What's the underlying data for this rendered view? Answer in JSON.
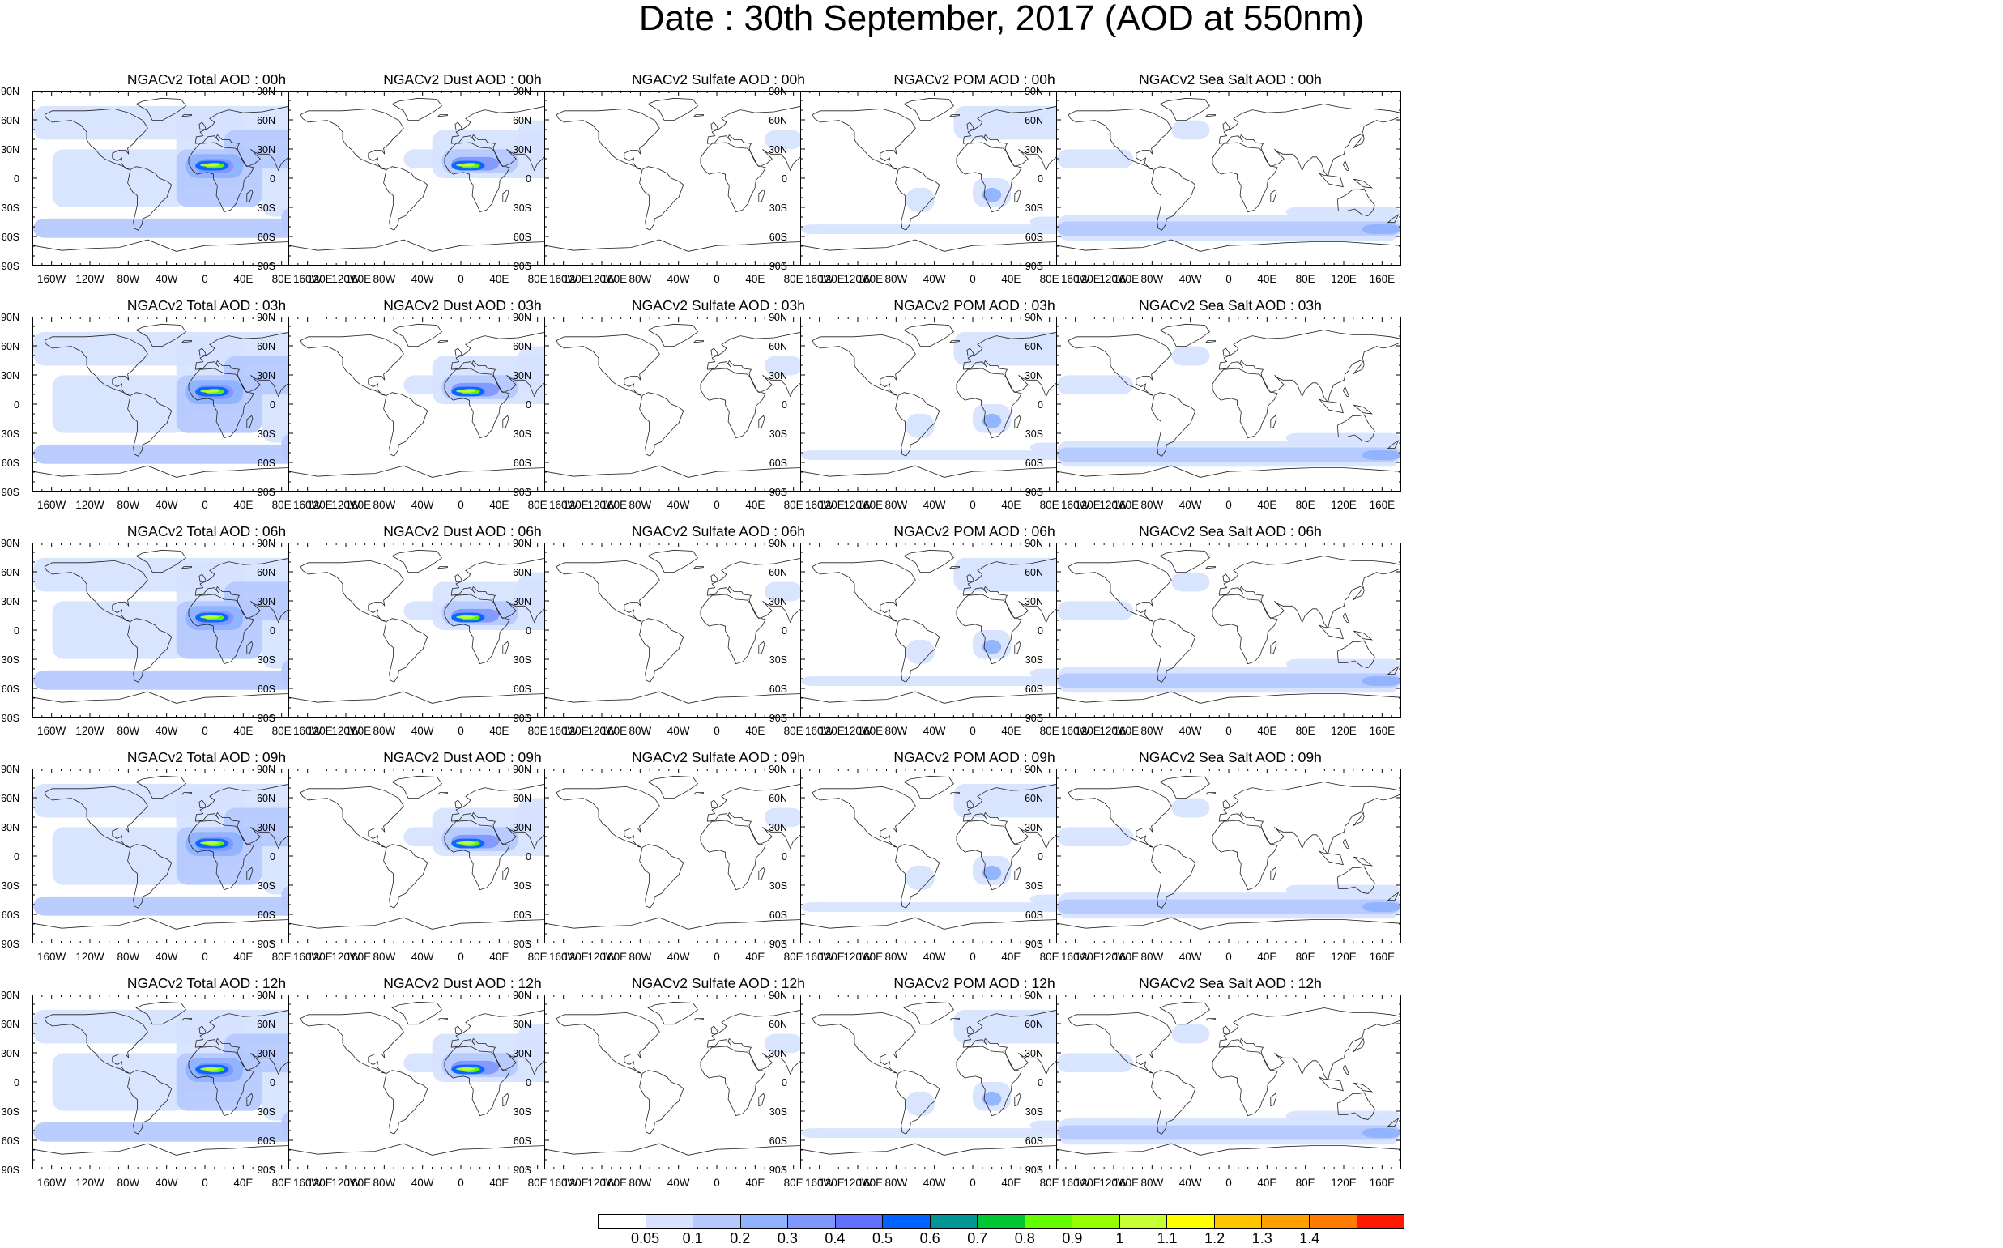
{
  "title": "Date : 30th September, 2017 (AOD at 550nm)",
  "lat_labels": [
    "90N",
    "60N",
    "30N",
    "0",
    "30S",
    "60S",
    "90S"
  ],
  "lon_labels": [
    "160W",
    "120W",
    "80W",
    "40W",
    "0",
    "40E",
    "80E",
    "120E",
    "160E"
  ],
  "columns": [
    {
      "species": "total",
      "titles": [
        "NGACv2 Total AOD : 00h",
        "NGACv2 Total AOD : 03h",
        "NGACv2 Total AOD : 06h",
        "NGACv2 Total AOD : 09h",
        "NGACv2 Total AOD :  12h"
      ]
    },
    {
      "species": "dust",
      "titles": [
        "NGACv2 Dust AOD : 00h",
        "NGACv2 Dust AOD : 03h",
        "NGACv2 Dust AOD : 06h",
        "NGACv2 Dust AOD : 09h",
        "NGACv2 Dust AOD : 12h"
      ]
    },
    {
      "species": "sulfate",
      "titles": [
        "NGACv2 Sulfate AOD : 00h",
        "NGACv2 Sulfate AOD : 03h",
        "NGACv2 Sulfate AOD : 06h",
        "NGACv2 Sulfate AOD : 09h",
        "NGACv2 Sulfate AOD : 12h"
      ]
    },
    {
      "species": "pom",
      "titles": [
        "NGACv2 POM AOD : 00h",
        "NGACv2 POM AOD : 03h",
        "NGACv2 POM AOD : 06h",
        "NGACv2 POM AOD : 09h",
        "NGACv2 POM  AOD : 12h"
      ]
    },
    {
      "species": "seasalt",
      "titles": [
        "NGACv2 Sea Salt AOD : 00h",
        "NGACv2 Sea Salt AOD : 03h",
        "NGACv2 Sea Salt AOD : 06h",
        "NGACv2 Sea Salt  AOD : 09h",
        "NGACv2 Sea Salt AOD : 12h"
      ]
    }
  ],
  "colorbar": {
    "labels": [
      "0.05",
      "0.1",
      "0.2",
      "0.3",
      "0.4",
      "0.5",
      "0.6",
      "0.7",
      "0.8",
      "0.9",
      "1",
      "1.1",
      "1.2",
      "1.3",
      "1.4"
    ],
    "colors": [
      "#ffffff",
      "#d6e2ff",
      "#b5c9ff",
      "#8eb2ff",
      "#7f96ff",
      "#6370ff",
      "#0063ff",
      "#009696",
      "#00c633",
      "#63ff00",
      "#96ff00",
      "#c6ff33",
      "#ffff00",
      "#ffc600",
      "#ffa000",
      "#ff7c00",
      "#ff1900"
    ]
  }
}
